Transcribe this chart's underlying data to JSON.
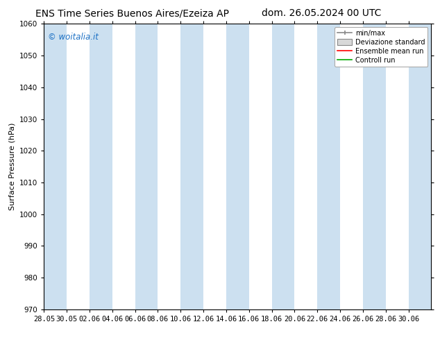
{
  "title_left": "ENS Time Series Buenos Aires/Ezeiza AP",
  "title_right": "dom. 26.05.2024 00 UTC",
  "ylabel": "Surface Pressure (hPa)",
  "ylim": [
    970,
    1060
  ],
  "yticks": [
    970,
    980,
    990,
    1000,
    1010,
    1020,
    1030,
    1040,
    1050,
    1060
  ],
  "xtick_labels": [
    "28.05",
    "30.05",
    "02.06",
    "04.06",
    "06.06",
    "08.06",
    "10.06",
    "12.06",
    "14.06",
    "16.06",
    "18.06",
    "20.06",
    "22.06",
    "24.06",
    "26.06",
    "28.06",
    "30.06"
  ],
  "shaded_band_color": "#cce0f0",
  "shaded_band_alpha": 1.0,
  "watermark_text": "© woitalia.it",
  "watermark_color": "#1a6fc4",
  "legend_labels": [
    "min/max",
    "Deviazione standard",
    "Ensemble mean run",
    "Controll run"
  ],
  "background_color": "#ffffff",
  "plot_bg_color": "#ffffff",
  "title_fontsize": 10,
  "axis_label_fontsize": 8,
  "tick_fontsize": 7.5,
  "figsize": [
    6.34,
    4.9
  ],
  "dpi": 100
}
